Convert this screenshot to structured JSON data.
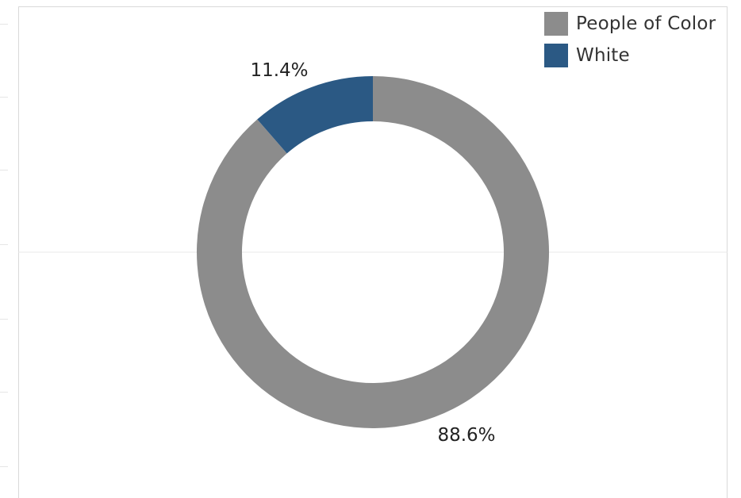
{
  "chart_data": {
    "type": "pie",
    "style": "donut",
    "categories": [
      "People of Color",
      "White"
    ],
    "values": [
      88.6,
      11.4
    ],
    "value_labels": [
      "88.6%",
      "11.4%"
    ],
    "colors": [
      "#8c8c8c",
      "#2b5984"
    ],
    "legend": {
      "position": "top-right",
      "items": [
        {
          "label": "People of Color",
          "color": "#8c8c8c"
        },
        {
          "label": "White",
          "color": "#2b5984"
        }
      ]
    },
    "title": "",
    "grid": false
  }
}
